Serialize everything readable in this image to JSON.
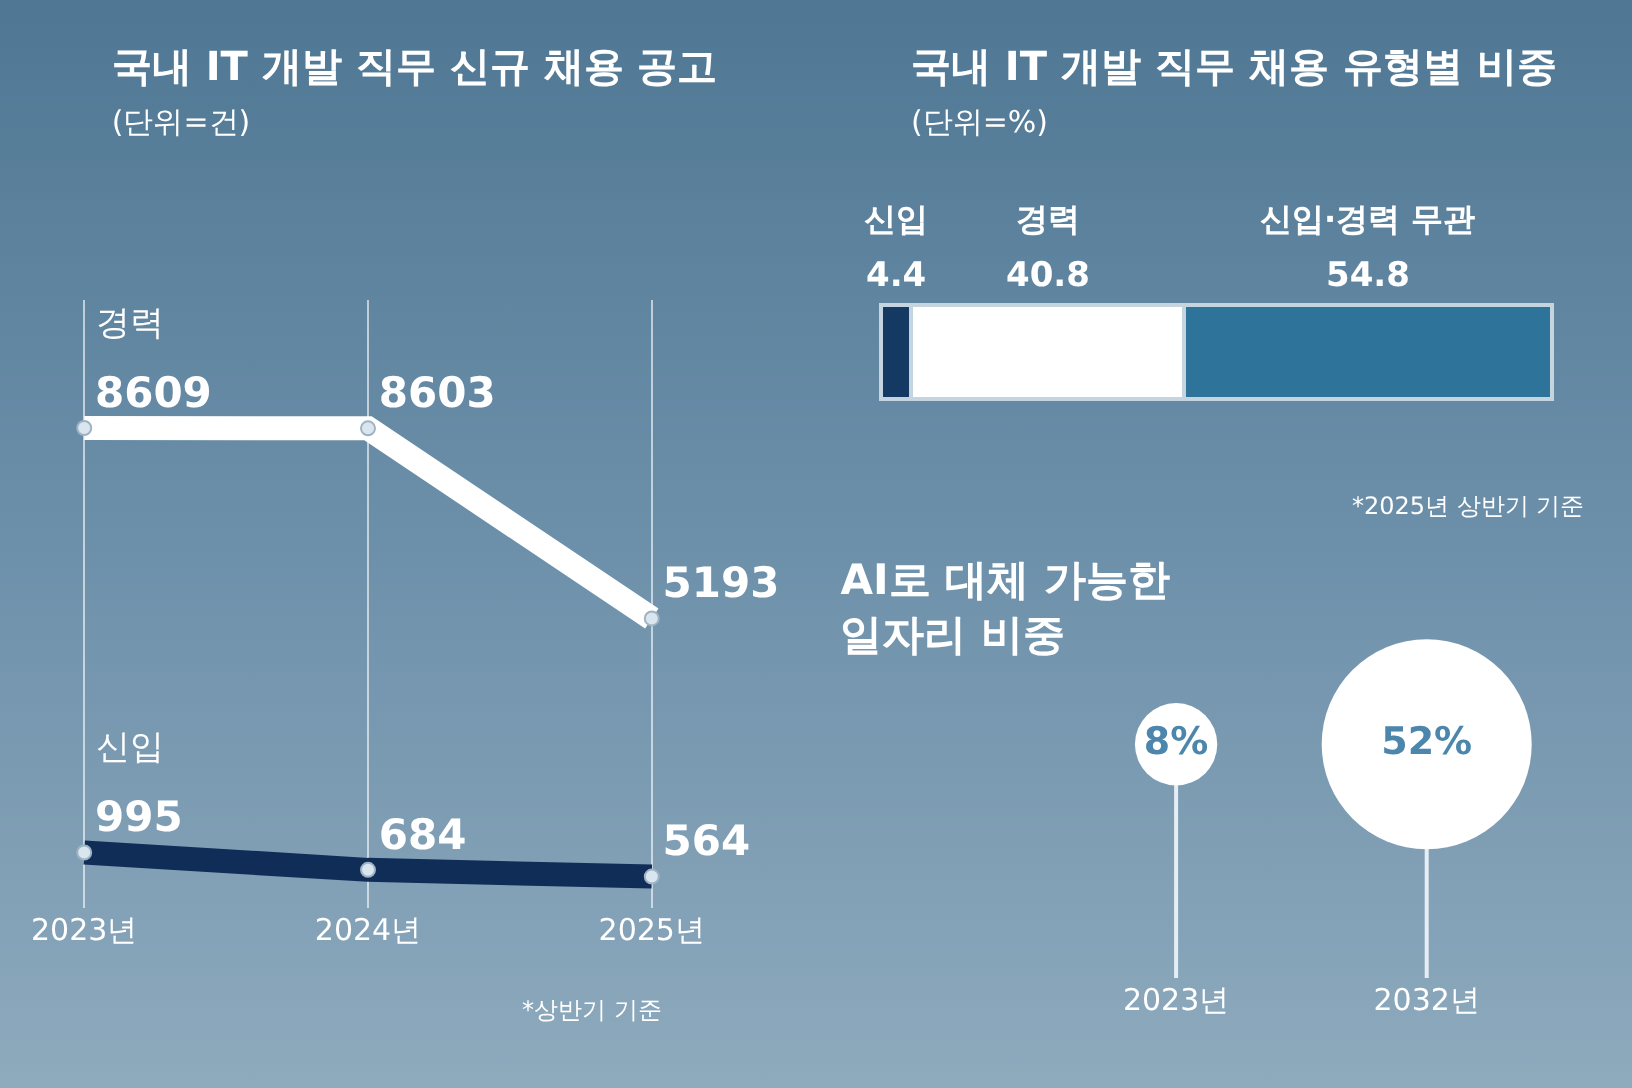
{
  "chart_data": [
    {
      "type": "line",
      "title": "국내 IT 개발 직무 신규 채용 공고",
      "subtitle": "(단위=건)",
      "categories": [
        "2023년",
        "2024년",
        "2025년"
      ],
      "series": [
        {
          "name": "경력",
          "color": "#ffffff",
          "values": [
            8609,
            8603,
            5193
          ]
        },
        {
          "name": "신입",
          "color": "#0f2d57",
          "values": [
            995,
            684,
            564
          ]
        }
      ],
      "data_labels": true,
      "grid": "x",
      "marker": "circle",
      "annotations": [
        "*상반기 기준"
      ]
    },
    {
      "type": "bar",
      "orientation": "horizontal",
      "stacked": true,
      "title": "국내 IT 개발 직무 채용 유형별 비중",
      "subtitle": "(단위=%)",
      "categories": [
        null
      ],
      "series": [
        {
          "name": "신입",
          "color": "#143a63",
          "values": [
            4.4
          ]
        },
        {
          "name": "경력",
          "color": "#ffffff",
          "values": [
            40.8
          ]
        },
        {
          "name": "신입·경력 무관",
          "color": "#2e7399",
          "values": [
            54.8
          ]
        }
      ],
      "data_labels": true,
      "annotations": [
        "*2025년 상반기 기준"
      ]
    },
    {
      "type": "other",
      "title": "AI로 대체 가능한\n일자리 비중",
      "categories": [
        "2023년",
        "2032년"
      ],
      "values": [
        8,
        52
      ],
      "value_labels": [
        "8%",
        "52%"
      ],
      "color": "#ffffff"
    }
  ]
}
